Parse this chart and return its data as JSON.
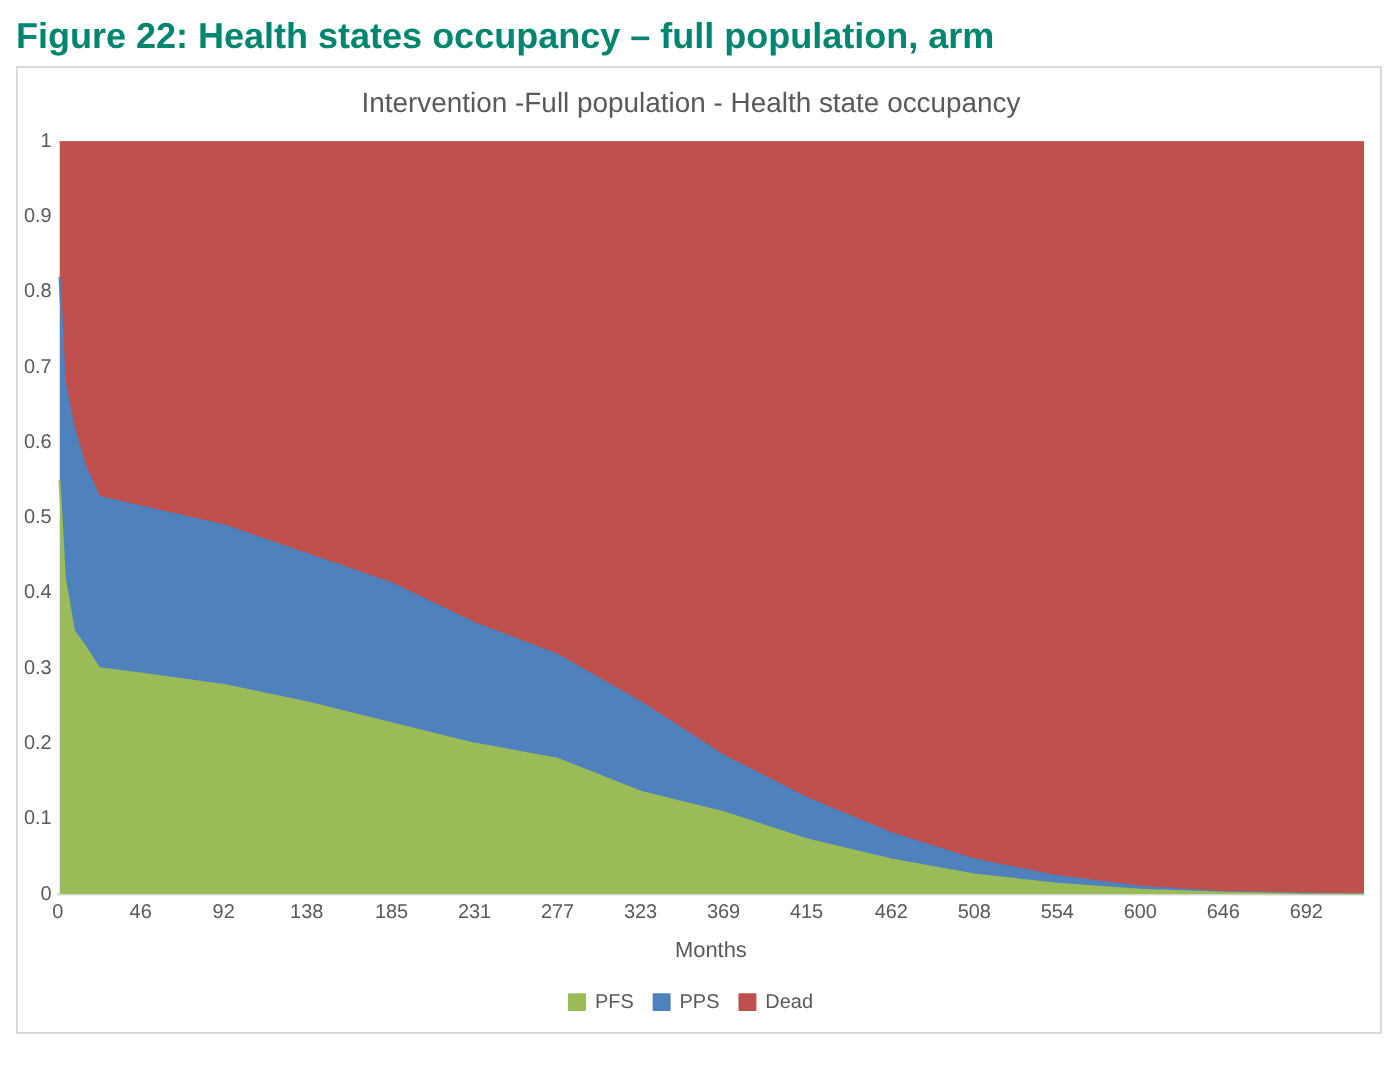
{
  "chart_data": {
    "type": "area",
    "stacked": true,
    "title": "Figure 22: Health states occupancy – full population, arm",
    "subtitle": "Intervention -Full population - Health state occupancy",
    "xlabel": "Months",
    "x": [
      1,
      4,
      9,
      15,
      23,
      46,
      92,
      138,
      185,
      231,
      277,
      323,
      369,
      415,
      462,
      508,
      554,
      600,
      646,
      692,
      724
    ],
    "series": [
      {
        "name": "PFS",
        "color": "#9bbb59",
        "values": [
          0.55,
          0.42,
          0.35,
          0.33,
          0.3,
          0.293,
          0.278,
          0.255,
          0.227,
          0.2,
          0.18,
          0.136,
          0.109,
          0.073,
          0.046,
          0.026,
          0.014,
          0.006,
          0.002,
          0,
          0
        ]
      },
      {
        "name": "PPS",
        "color": "#4f81bd",
        "values": [
          0.27,
          0.26,
          0.27,
          0.24,
          0.228,
          0.222,
          0.212,
          0.197,
          0.186,
          0.16,
          0.138,
          0.119,
          0.075,
          0.055,
          0.035,
          0.02,
          0.01,
          0.004,
          0.001,
          0.001,
          0
        ]
      },
      {
        "name": "Dead",
        "color": "#c0504d",
        "values": [
          0.18,
          0.32,
          0.38,
          0.43,
          0.472,
          0.485,
          0.51,
          0.548,
          0.587,
          0.64,
          0.682,
          0.745,
          0.816,
          0.872,
          0.919,
          0.954,
          0.976,
          0.99,
          0.997,
          0.999,
          1
        ]
      }
    ],
    "xlim": [
      0,
      724
    ],
    "xticks": [
      0,
      46,
      92,
      138,
      185,
      231,
      277,
      323,
      369,
      415,
      462,
      508,
      554,
      600,
      646,
      692
    ],
    "ylim": [
      0,
      1
    ],
    "yticks": [
      0,
      0.1,
      0.2,
      0.3,
      0.4,
      0.5,
      0.6,
      0.7,
      0.8,
      0.9,
      1
    ],
    "legend": "bottom",
    "marker": "none"
  }
}
